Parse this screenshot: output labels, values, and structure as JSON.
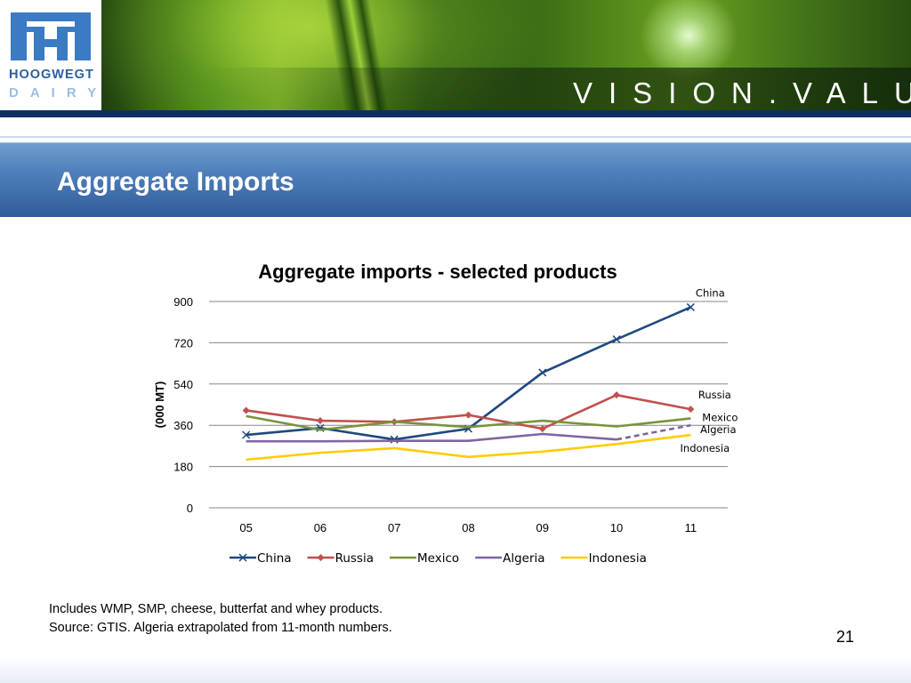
{
  "brand": {
    "logo_text_top": "HOOGWEGT",
    "logo_text_bottom": "DAIRY",
    "tagline": "VISION.VALUE.",
    "logo_color": "#3a7bc4",
    "banner_line_color": "#0f2f63"
  },
  "page": {
    "title": "Aggregate Imports",
    "notes": [
      "Includes WMP, SMP, cheese, butterfat and whey products.",
      "Source: GTIS. Algeria extrapolated from 11-month numbers."
    ],
    "slide_number": "21"
  },
  "chart_data": {
    "type": "line",
    "title": "Aggregate imports - selected products",
    "ylabel": "(000 MT)",
    "xlabel": "",
    "categories": [
      "05",
      "06",
      "07",
      "08",
      "09",
      "10",
      "11"
    ],
    "ylim": [
      0,
      900
    ],
    "yticks": [
      0,
      180,
      360,
      540,
      720,
      900
    ],
    "grid": true,
    "legend_position": "bottom",
    "series": [
      {
        "name": "China",
        "values": [
          318,
          348,
          298,
          345,
          590,
          735,
          875
        ],
        "color": "#1f497d",
        "marker": "x",
        "end_label": "China"
      },
      {
        "name": "Russia",
        "values": [
          425,
          380,
          375,
          405,
          345,
          492,
          430
        ],
        "color": "#c0504d",
        "marker": "diamond",
        "end_label": "Russia"
      },
      {
        "name": "Mexico",
        "values": [
          400,
          340,
          375,
          352,
          380,
          355,
          390
        ],
        "color": "#77933c",
        "marker": "none",
        "end_label": "Mexico"
      },
      {
        "name": "Algeria",
        "values": [
          290,
          290,
          292,
          292,
          322,
          298,
          360
        ],
        "color": "#8064a2",
        "marker": "none",
        "end_label": "Algeria",
        "dashed_last_segment": true
      },
      {
        "name": "Indonesia",
        "values": [
          210,
          240,
          260,
          222,
          245,
          278,
          318
        ],
        "color": "#ffcc00",
        "marker": "none",
        "end_label": "Indonesia"
      }
    ]
  }
}
